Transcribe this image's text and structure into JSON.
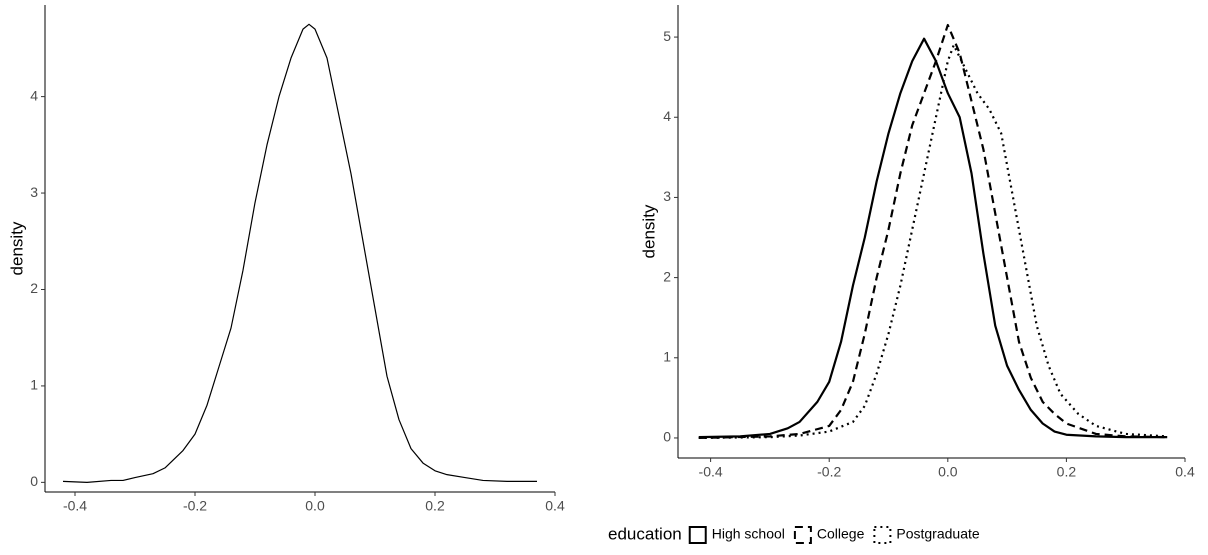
{
  "chart_data": [
    {
      "type": "line",
      "y_label": "density",
      "x": [
        -0.42,
        -0.38,
        -0.34,
        -0.32,
        -0.3,
        -0.27,
        -0.25,
        -0.22,
        -0.2,
        -0.18,
        -0.16,
        -0.14,
        -0.12,
        -0.1,
        -0.08,
        -0.06,
        -0.04,
        -0.02,
        -0.01,
        0.0,
        0.02,
        0.04,
        0.06,
        0.08,
        0.1,
        0.12,
        0.14,
        0.16,
        0.18,
        0.2,
        0.22,
        0.25,
        0.28,
        0.32,
        0.37
      ],
      "values": [
        0.01,
        0.0,
        0.02,
        0.02,
        0.05,
        0.09,
        0.15,
        0.33,
        0.5,
        0.8,
        1.2,
        1.6,
        2.2,
        2.9,
        3.5,
        4.0,
        4.4,
        4.7,
        4.75,
        4.7,
        4.4,
        3.8,
        3.2,
        2.5,
        1.8,
        1.1,
        0.65,
        0.35,
        0.2,
        0.12,
        0.08,
        0.05,
        0.02,
        0.01,
        0.01
      ],
      "color": "#000000",
      "linetype": "solid",
      "xlim": [
        -0.45,
        0.4
      ],
      "ylim": [
        -0.1,
        4.95
      ],
      "xticks": [
        -0.4,
        -0.2,
        {
          "value": 0,
          "label": "0.0"
        },
        0.2,
        0.4
      ],
      "yticks": [
        0,
        1,
        2,
        3,
        4
      ]
    },
    {
      "type": "line",
      "y_label": "density",
      "legend_title": "education",
      "legend": "bottom",
      "series": [
        {
          "name": "High school",
          "color": "#000000",
          "linetype": "solid",
          "x": [
            -0.42,
            -0.35,
            -0.3,
            -0.27,
            -0.25,
            -0.22,
            -0.2,
            -0.18,
            -0.16,
            -0.14,
            -0.12,
            -0.1,
            -0.08,
            -0.06,
            -0.04,
            -0.02,
            0.0,
            0.02,
            0.04,
            0.06,
            0.08,
            0.1,
            0.12,
            0.14,
            0.16,
            0.18,
            0.2,
            0.25,
            0.3,
            0.37
          ],
          "values": [
            0.01,
            0.02,
            0.05,
            0.12,
            0.2,
            0.45,
            0.7,
            1.2,
            1.9,
            2.5,
            3.2,
            3.8,
            4.3,
            4.7,
            4.98,
            4.7,
            4.3,
            4.0,
            3.3,
            2.3,
            1.4,
            0.9,
            0.6,
            0.35,
            0.18,
            0.08,
            0.04,
            0.02,
            0.01,
            0.01
          ]
        },
        {
          "name": "College",
          "color": "#000000",
          "linetype": "dashed",
          "x": [
            -0.42,
            -0.3,
            -0.25,
            -0.2,
            -0.18,
            -0.16,
            -0.14,
            -0.12,
            -0.1,
            -0.08,
            -0.06,
            -0.04,
            -0.02,
            0.0,
            0.02,
            0.04,
            0.06,
            0.08,
            0.1,
            0.12,
            0.14,
            0.16,
            0.18,
            0.2,
            0.25,
            0.3,
            0.37
          ],
          "values": [
            0.0,
            0.02,
            0.05,
            0.15,
            0.35,
            0.7,
            1.3,
            2.0,
            2.6,
            3.3,
            3.9,
            4.3,
            4.7,
            5.15,
            4.8,
            4.2,
            3.6,
            2.8,
            2.0,
            1.2,
            0.75,
            0.45,
            0.3,
            0.18,
            0.05,
            0.02,
            0.01
          ]
        },
        {
          "name": "Postgraduate",
          "color": "#000000",
          "linetype": "dotted",
          "x": [
            -0.42,
            -0.3,
            -0.25,
            -0.2,
            -0.16,
            -0.14,
            -0.12,
            -0.1,
            -0.08,
            -0.06,
            -0.04,
            -0.02,
            0.0,
            0.01,
            0.03,
            0.05,
            0.07,
            0.09,
            0.11,
            0.13,
            0.15,
            0.17,
            0.19,
            0.22,
            0.25,
            0.3,
            0.37
          ],
          "values": [
            0.0,
            0.01,
            0.03,
            0.08,
            0.2,
            0.4,
            0.8,
            1.3,
            1.9,
            2.6,
            3.3,
            4.0,
            4.7,
            4.9,
            4.6,
            4.3,
            4.1,
            3.8,
            3.0,
            2.2,
            1.4,
            0.9,
            0.55,
            0.3,
            0.15,
            0.05,
            0.02
          ]
        }
      ],
      "xlim": [
        -0.455,
        0.4
      ],
      "ylim": [
        -0.25,
        5.4
      ],
      "xticks": [
        -0.4,
        -0.2,
        {
          "value": 0,
          "label": "0.0"
        },
        0.2,
        0.4
      ],
      "yticks": [
        0,
        1,
        2,
        3,
        4,
        5
      ]
    }
  ]
}
